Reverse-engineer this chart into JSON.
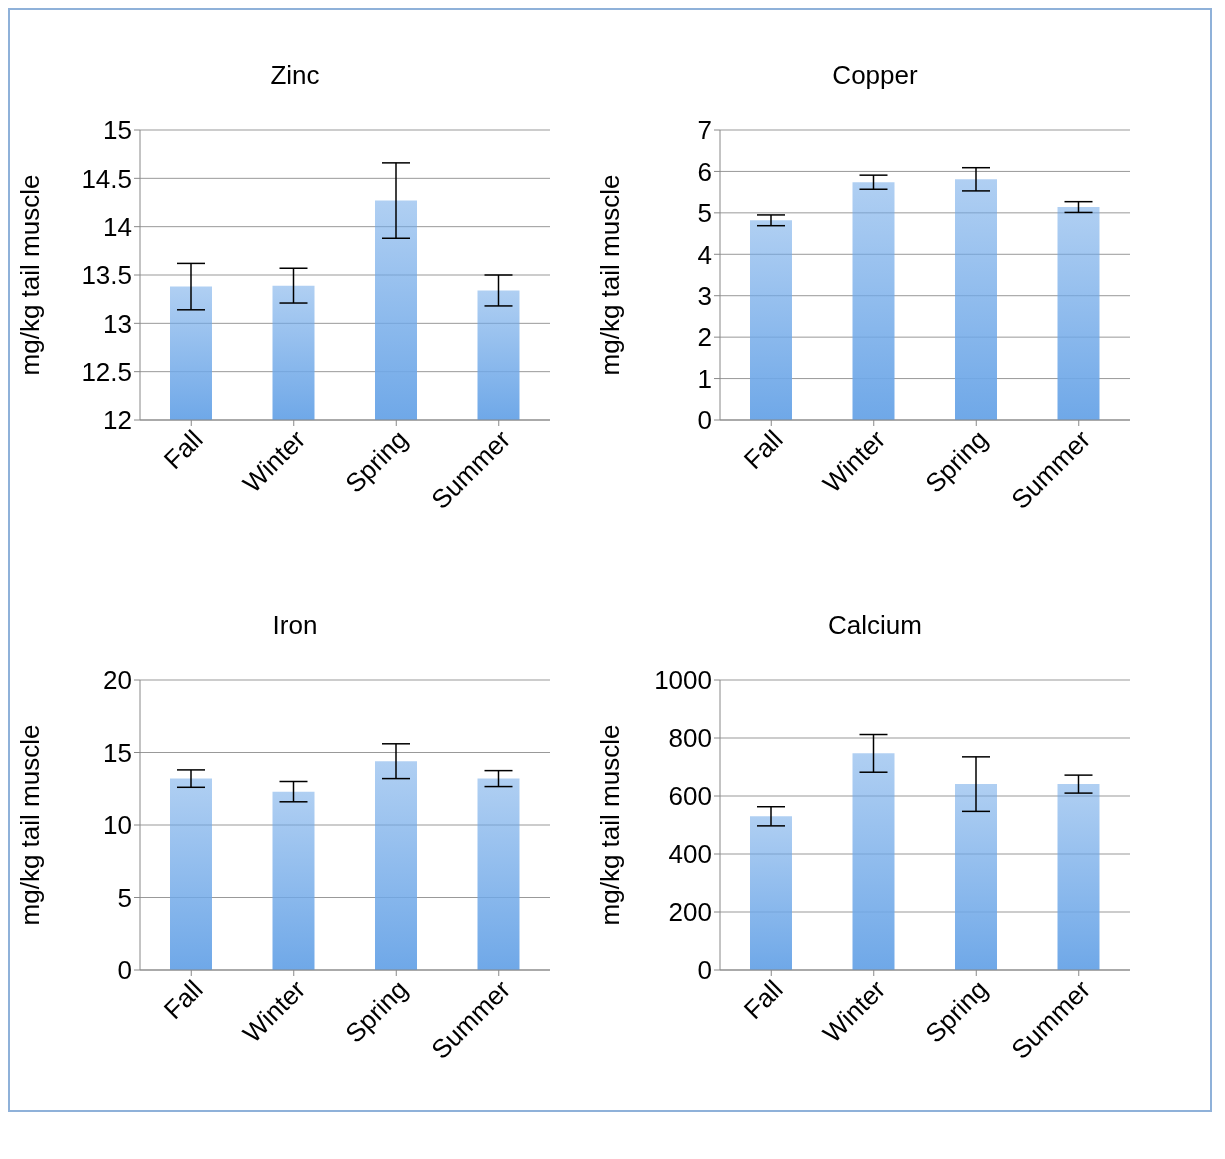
{
  "chart_data": [
    {
      "type": "bar",
      "title": "Zinc",
      "ylabel": "mg/kg tail muscle",
      "categories": [
        "Fall",
        "Winter",
        "Spring",
        "Summer"
      ],
      "values": [
        13.38,
        13.39,
        14.27,
        13.34
      ],
      "errors": [
        0.24,
        0.18,
        0.39,
        0.16
      ],
      "color": "#6fa8e8",
      "ylim": [
        12,
        15
      ],
      "yticks": [
        12,
        12.5,
        13,
        13.5,
        14,
        14.5,
        15
      ],
      "grid": "y"
    },
    {
      "type": "bar",
      "title": "Copper",
      "ylabel": "mg/kg tail muscle",
      "categories": [
        "Fall",
        "Winter",
        "Spring",
        "Summer"
      ],
      "values": [
        4.82,
        5.74,
        5.81,
        5.14
      ],
      "errors": [
        0.13,
        0.17,
        0.28,
        0.13
      ],
      "color": "#6fa8e8",
      "ylim": [
        0,
        7
      ],
      "yticks": [
        0,
        1,
        2,
        3,
        4,
        5,
        6,
        7
      ],
      "grid": "y"
    },
    {
      "type": "bar",
      "title": "Iron",
      "ylabel": "mg/kg tail muscle",
      "categories": [
        "Fall",
        "Winter",
        "Spring",
        "Summer"
      ],
      "values": [
        13.2,
        12.3,
        14.4,
        13.2
      ],
      "errors": [
        0.6,
        0.7,
        1.2,
        0.55
      ],
      "color": "#6fa8e8",
      "ylim": [
        0,
        20
      ],
      "yticks": [
        0,
        5,
        10,
        15,
        20
      ],
      "grid": "y"
    },
    {
      "type": "bar",
      "title": "Calcium",
      "ylabel": "mg/kg tail muscle",
      "categories": [
        "Fall",
        "Winter",
        "Spring",
        "Summer"
      ],
      "values": [
        530,
        747,
        641,
        641
      ],
      "errors": [
        33,
        65,
        94,
        31
      ],
      "color": "#6fa8e8",
      "ylim": [
        0,
        1000
      ],
      "yticks": [
        0,
        200,
        400,
        600,
        800,
        1000
      ],
      "grid": "y"
    }
  ]
}
